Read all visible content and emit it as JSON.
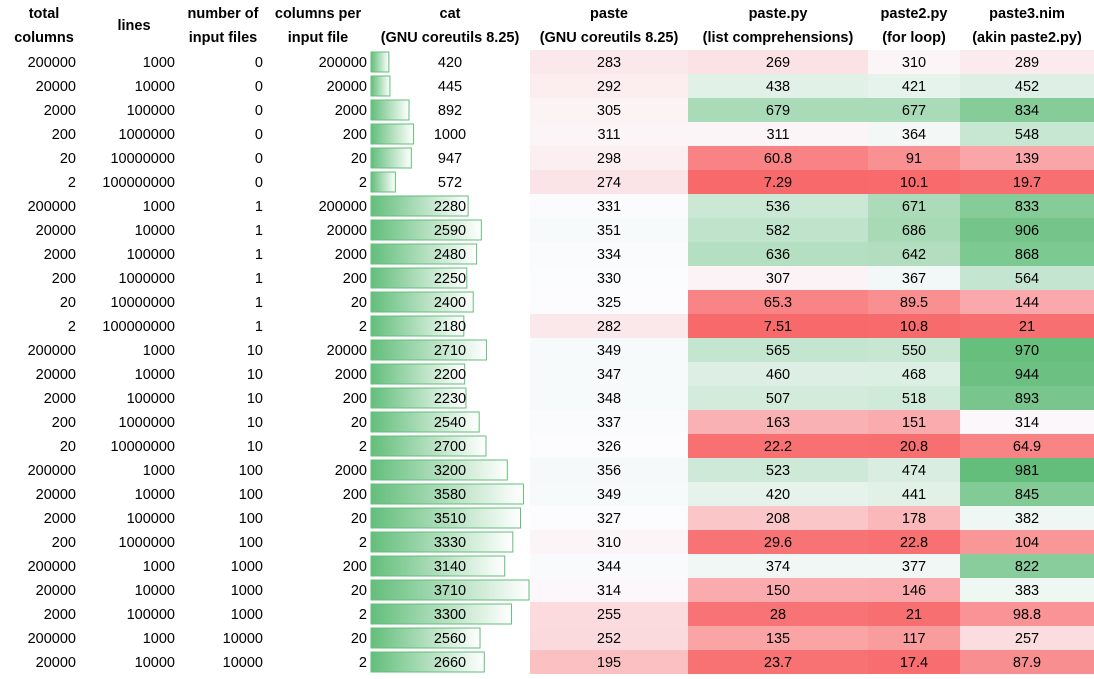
{
  "table": {
    "headers": [
      [
        "total",
        "columns"
      ],
      [
        "lines"
      ],
      [
        "number of",
        "input files"
      ],
      [
        "columns per",
        "input file"
      ],
      [
        "cat",
        "(GNU coreutils 8.25)"
      ],
      [
        "paste",
        "(GNU coreutils 8.25)"
      ],
      [
        "paste.py",
        "(list comprehensions)"
      ],
      [
        "paste2.py",
        "(for loop)"
      ],
      [
        "paste3.nim",
        "(akin paste2.py)"
      ]
    ],
    "rows": [
      [
        200000,
        1000,
        0,
        200000,
        420,
        283,
        269,
        310,
        289
      ],
      [
        20000,
        10000,
        0,
        20000,
        445,
        292,
        438,
        421,
        452
      ],
      [
        2000,
        100000,
        0,
        2000,
        892,
        305,
        679,
        677,
        834
      ],
      [
        200,
        1000000,
        0,
        200,
        1000,
        311,
        311,
        364,
        548
      ],
      [
        20,
        10000000,
        0,
        20,
        947,
        298,
        60.8,
        91,
        139
      ],
      [
        2,
        100000000,
        0,
        2,
        572,
        274,
        7.29,
        10.1,
        19.7
      ],
      [
        200000,
        1000,
        1,
        200000,
        2280,
        331,
        536,
        671,
        833
      ],
      [
        20000,
        10000,
        1,
        20000,
        2590,
        351,
        582,
        686,
        906
      ],
      [
        2000,
        100000,
        1,
        2000,
        2480,
        334,
        636,
        642,
        868
      ],
      [
        200,
        1000000,
        1,
        200,
        2250,
        330,
        307,
        367,
        564
      ],
      [
        20,
        10000000,
        1,
        20,
        2400,
        325,
        65.3,
        89.5,
        144
      ],
      [
        2,
        100000000,
        1,
        2,
        2180,
        282,
        7.51,
        10.8,
        21
      ],
      [
        200000,
        1000,
        10,
        20000,
        2710,
        349,
        565,
        550,
        970
      ],
      [
        20000,
        10000,
        10,
        2000,
        2200,
        347,
        460,
        468,
        944
      ],
      [
        2000,
        100000,
        10,
        200,
        2230,
        348,
        507,
        518,
        893
      ],
      [
        200,
        1000000,
        10,
        20,
        2540,
        337,
        163,
        151,
        314
      ],
      [
        20,
        10000000,
        10,
        2,
        2700,
        326,
        22.2,
        20.8,
        64.9
      ],
      [
        200000,
        1000,
        100,
        2000,
        3200,
        356,
        523,
        474,
        981
      ],
      [
        20000,
        10000,
        100,
        200,
        3580,
        349,
        420,
        441,
        845
      ],
      [
        2000,
        100000,
        100,
        20,
        3510,
        327,
        208,
        178,
        382
      ],
      [
        200,
        1000000,
        100,
        2,
        3330,
        310,
        29.6,
        22.8,
        104
      ],
      [
        200000,
        1000,
        1000,
        200,
        3140,
        344,
        374,
        377,
        822
      ],
      [
        20000,
        10000,
        1000,
        20,
        3710,
        314,
        150,
        146,
        383
      ],
      [
        2000,
        100000,
        1000,
        2,
        3300,
        255,
        28,
        21,
        98.8
      ],
      [
        200000,
        1000,
        10000,
        20,
        2560,
        252,
        135,
        117,
        257
      ],
      [
        20000,
        10000,
        10000,
        2,
        2660,
        195,
        23.7,
        17.4,
        87.9
      ]
    ]
  }
}
